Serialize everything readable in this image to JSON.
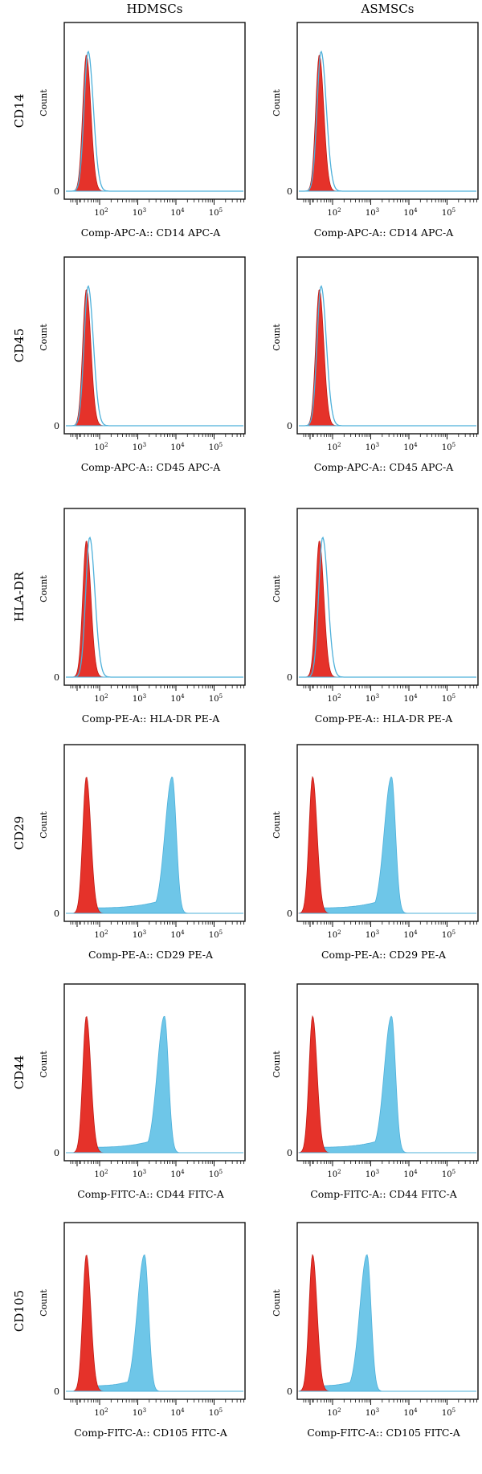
{
  "columns": [
    "HDMSCs",
    "ASMSCs"
  ],
  "rows": [
    {
      "label": "CD14",
      "xlabels": [
        "Comp-APC-A:: CD14 APC-A",
        "Comp-APC-A:: CD14 APC-A"
      ]
    },
    {
      "label": "CD45",
      "xlabels": [
        "Comp-APC-A:: CD45 APC-A",
        "Comp-APC-A:: CD45 APC-A"
      ]
    },
    {
      "label": "HLA-DR",
      "xlabels": [
        "Comp-PE-A:: HLA-DR PE-A",
        "Comp-PE-A:: HLA-DR PE-A"
      ]
    },
    {
      "label": "CD29",
      "xlabels": [
        "Comp-PE-A:: CD29 PE-A",
        "Comp-PE-A:: CD29 PE-A"
      ]
    },
    {
      "label": "CD44",
      "xlabels": [
        "Comp-FITC-A:: CD44 FITC-A",
        "Comp-FITC-A:: CD44 FITC-A"
      ]
    },
    {
      "label": "CD105",
      "xlabels": [
        "Comp-FITC-A:: CD105 FITC-A",
        "Comp-FITC-A:: CD105 FITC-A"
      ]
    }
  ],
  "colors": {
    "control": "#e5322a",
    "control_edge": "#c21a14",
    "sample": "#6ec6e8",
    "sample_edge": "#4eb0da",
    "axis": "#111111"
  },
  "chart_data": {
    "type": "area",
    "subtype": "flow-cytometry-histogram-overlay",
    "xscale": "log (biexponential)",
    "x_tick_labels": [
      "10^2",
      "10^3",
      "10^4",
      "10^5"
    ],
    "x_ticks": [
      100,
      1000,
      10000,
      100000
    ],
    "y_label": "Count",
    "y_tick_labels": [
      "0"
    ],
    "grid": false,
    "series_colors": {
      "isotype_control": "red filled",
      "marker": "blue"
    },
    "panels": [
      {
        "row": "CD14",
        "column": "HDMSCs",
        "xlabel": "Comp-APC-A:: CD14 APC-A",
        "control_peak_x": 45,
        "marker_peak_x": 50,
        "marker_style": "outline"
      },
      {
        "row": "CD14",
        "column": "ASMSCs",
        "xlabel": "Comp-APC-A:: CD14 APC-A",
        "control_peak_x": 45,
        "marker_peak_x": 50,
        "marker_style": "outline"
      },
      {
        "row": "CD45",
        "column": "HDMSCs",
        "xlabel": "Comp-APC-A:: CD45 APC-A",
        "control_peak_x": 45,
        "marker_peak_x": 50,
        "marker_style": "outline"
      },
      {
        "row": "CD45",
        "column": "ASMSCs",
        "xlabel": "Comp-APC-A:: CD45 APC-A",
        "control_peak_x": 45,
        "marker_peak_x": 50,
        "marker_style": "outline"
      },
      {
        "row": "HLA-DR",
        "column": "HDMSCs",
        "xlabel": "Comp-PE-A:: HLA-DR PE-A",
        "control_peak_x": 45,
        "marker_peak_x": 55,
        "marker_style": "outline"
      },
      {
        "row": "HLA-DR",
        "column": "ASMSCs",
        "xlabel": "Comp-PE-A:: HLA-DR PE-A",
        "control_peak_x": 45,
        "marker_peak_x": 55,
        "marker_style": "outline"
      },
      {
        "row": "CD29",
        "column": "HDMSCs",
        "xlabel": "Comp-PE-A:: CD29 PE-A",
        "control_peak_x": 45,
        "marker_peak_x": 8000,
        "marker_style": "filled"
      },
      {
        "row": "CD29",
        "column": "ASMSCs",
        "xlabel": "Comp-PE-A:: CD29 PE-A",
        "control_peak_x": 30,
        "marker_peak_x": 3500,
        "marker_style": "filled"
      },
      {
        "row": "CD44",
        "column": "HDMSCs",
        "xlabel": "Comp-FITC-A:: CD44 FITC-A",
        "control_peak_x": 45,
        "marker_peak_x": 5000,
        "marker_style": "filled"
      },
      {
        "row": "CD44",
        "column": "ASMSCs",
        "xlabel": "Comp-FITC-A:: CD44 FITC-A",
        "control_peak_x": 30,
        "marker_peak_x": 3500,
        "marker_style": "filled"
      },
      {
        "row": "CD105",
        "column": "HDMSCs",
        "xlabel": "Comp-FITC-A:: CD105 FITC-A",
        "control_peak_x": 45,
        "marker_peak_x": 1500,
        "marker_style": "filled"
      },
      {
        "row": "CD105",
        "column": "ASMSCs",
        "xlabel": "Comp-FITC-A:: CD105 FITC-A",
        "control_peak_x": 30,
        "marker_peak_x": 800,
        "marker_style": "filled"
      }
    ]
  }
}
